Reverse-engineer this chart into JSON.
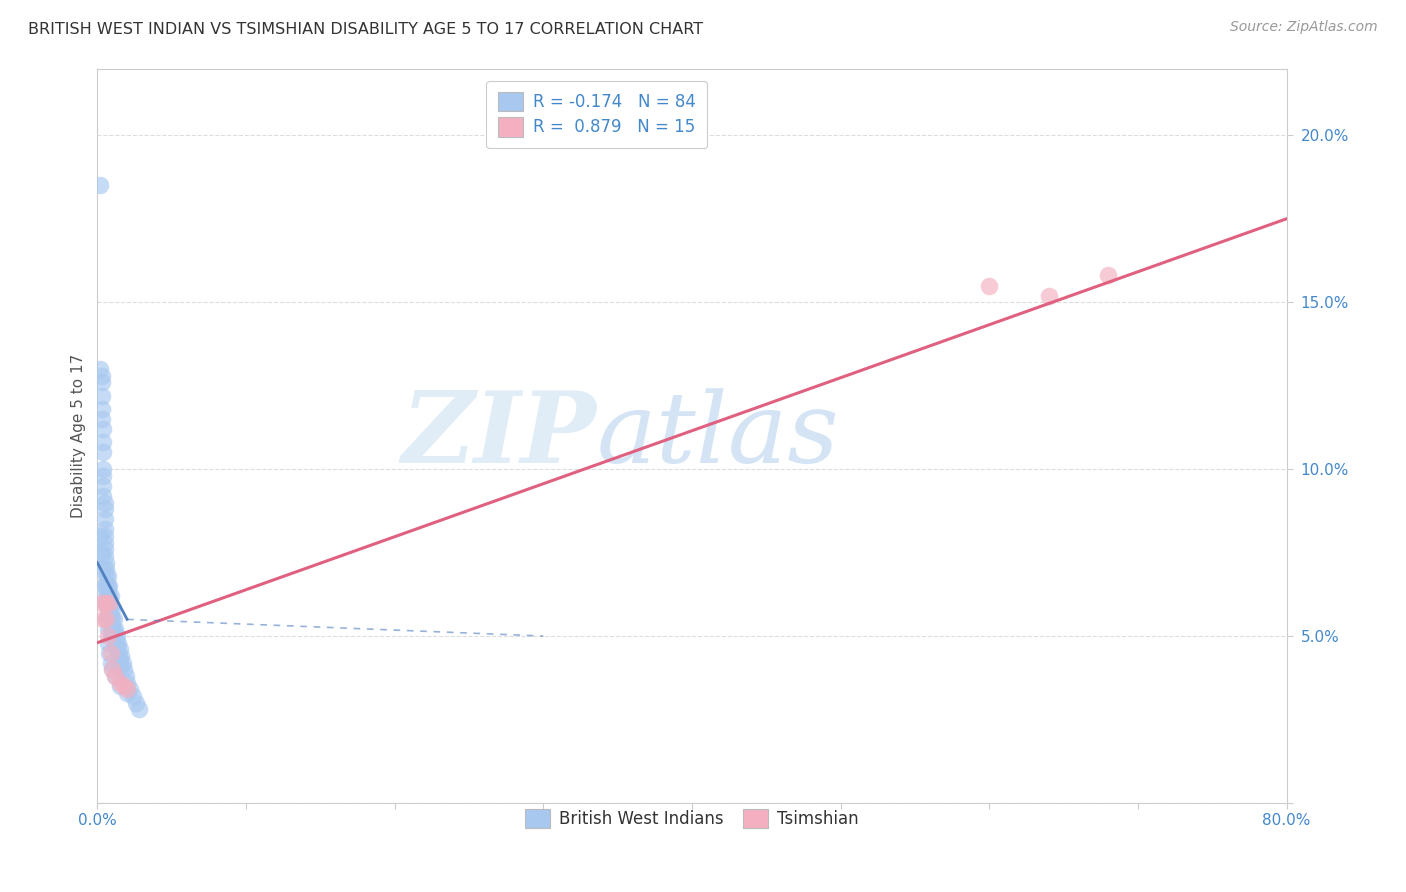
{
  "title": "BRITISH WEST INDIAN VS TSIMSHIAN DISABILITY AGE 5 TO 17 CORRELATION CHART",
  "source": "Source: ZipAtlas.com",
  "ylabel": "Disability Age 5 to 17",
  "xlim": [
    0,
    0.8
  ],
  "ylim": [
    0,
    0.22
  ],
  "R_blue": -0.174,
  "N_blue": 84,
  "R_pink": 0.879,
  "N_pink": 15,
  "blue_color": "#a8c8f0",
  "blue_edge_color": "#6090d0",
  "pink_color": "#f4b0c0",
  "pink_edge_color": "#e06080",
  "blue_line_color": "#5080c0",
  "pink_line_color": "#e06080",
  "watermark_zip": "ZIP",
  "watermark_atlas": "atlas",
  "legend_label_blue": "British West Indians",
  "legend_label_pink": "Tsimshian",
  "blue_scatter_x": [
    0.002,
    0.002,
    0.003,
    0.003,
    0.003,
    0.003,
    0.003,
    0.004,
    0.004,
    0.004,
    0.004,
    0.004,
    0.004,
    0.004,
    0.005,
    0.005,
    0.005,
    0.005,
    0.005,
    0.005,
    0.005,
    0.005,
    0.006,
    0.006,
    0.006,
    0.006,
    0.006,
    0.006,
    0.006,
    0.007,
    0.007,
    0.007,
    0.007,
    0.007,
    0.007,
    0.008,
    0.008,
    0.008,
    0.008,
    0.008,
    0.009,
    0.009,
    0.009,
    0.009,
    0.01,
    0.01,
    0.01,
    0.01,
    0.011,
    0.011,
    0.011,
    0.012,
    0.012,
    0.012,
    0.013,
    0.013,
    0.014,
    0.014,
    0.015,
    0.015,
    0.016,
    0.016,
    0.017,
    0.018,
    0.019,
    0.02,
    0.022,
    0.024,
    0.026,
    0.028,
    0.003,
    0.004,
    0.005,
    0.006,
    0.006,
    0.007,
    0.007,
    0.008,
    0.009,
    0.01,
    0.012,
    0.015,
    0.02,
    0.002
  ],
  "blue_scatter_y": [
    0.185,
    0.13,
    0.128,
    0.126,
    0.122,
    0.118,
    0.115,
    0.112,
    0.108,
    0.105,
    0.1,
    0.098,
    0.095,
    0.092,
    0.09,
    0.088,
    0.085,
    0.082,
    0.08,
    0.078,
    0.076,
    0.074,
    0.072,
    0.07,
    0.068,
    0.066,
    0.064,
    0.062,
    0.06,
    0.068,
    0.065,
    0.063,
    0.06,
    0.058,
    0.056,
    0.065,
    0.062,
    0.06,
    0.058,
    0.055,
    0.062,
    0.059,
    0.056,
    0.053,
    0.058,
    0.055,
    0.052,
    0.05,
    0.055,
    0.052,
    0.049,
    0.052,
    0.049,
    0.047,
    0.05,
    0.047,
    0.048,
    0.045,
    0.046,
    0.043,
    0.044,
    0.041,
    0.042,
    0.04,
    0.038,
    0.036,
    0.034,
    0.032,
    0.03,
    0.028,
    0.075,
    0.07,
    0.065,
    0.06,
    0.055,
    0.052,
    0.048,
    0.045,
    0.042,
    0.04,
    0.038,
    0.035,
    0.033,
    0.08
  ],
  "pink_scatter_x": [
    0.003,
    0.004,
    0.005,
    0.006,
    0.007,
    0.008,
    0.009,
    0.01,
    0.012,
    0.015,
    0.018,
    0.02,
    0.6,
    0.64,
    0.68
  ],
  "pink_scatter_y": [
    0.06,
    0.055,
    0.06,
    0.055,
    0.05,
    0.06,
    0.045,
    0.04,
    0.038,
    0.036,
    0.035,
    0.034,
    0.155,
    0.152,
    0.158
  ],
  "pink_line_x0": 0.0,
  "pink_line_y0": 0.048,
  "pink_line_x1": 0.8,
  "pink_line_y1": 0.175,
  "blue_line_x0": 0.0,
  "blue_line_y0": 0.072,
  "blue_line_x1": 0.3,
  "blue_line_y1": 0.05
}
